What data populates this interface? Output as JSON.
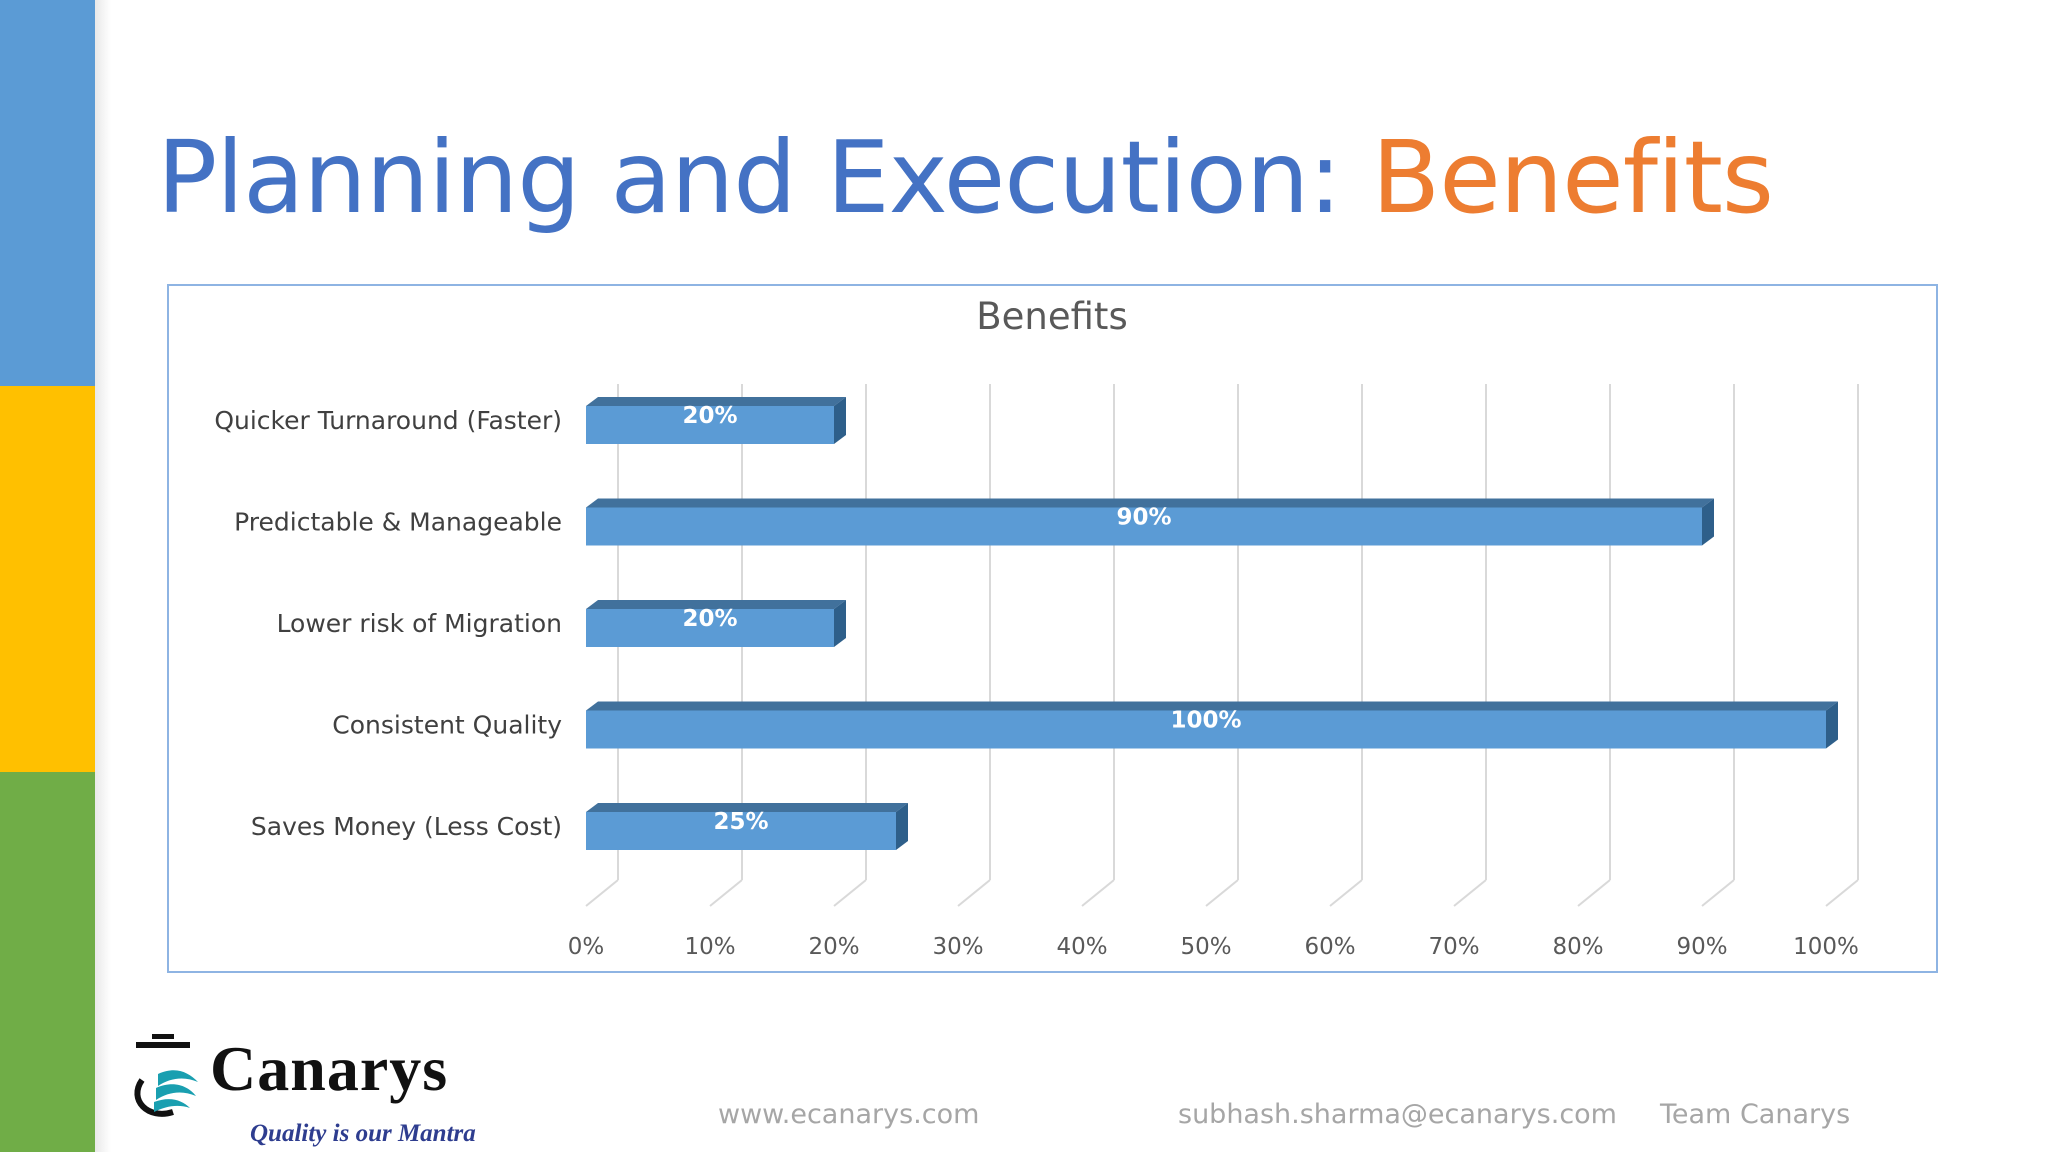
{
  "slide": {
    "title_main": "Planning and Execution: ",
    "title_accent": "Benefits",
    "colors": {
      "title": "#4472c4",
      "accent": "#ed7d31",
      "strip_blue": "#5b9bd5",
      "strip_yellow": "#ffc000",
      "strip_green": "#70ad47",
      "bar": "#5b9bd5"
    }
  },
  "chart_data": {
    "type": "bar",
    "orientation": "horizontal",
    "title": "Benefits",
    "categories": [
      "Quicker Turnaround (Faster)",
      "Predictable & Manageable",
      "Lower risk of Migration",
      "Consistent Quality",
      "Saves Money (Less Cost)"
    ],
    "values": [
      20,
      90,
      20,
      100,
      25
    ],
    "data_labels": [
      "20%",
      "90%",
      "20%",
      "100%",
      "25%"
    ],
    "xlim": [
      0,
      100
    ],
    "x_ticks": [
      "0%",
      "10%",
      "20%",
      "30%",
      "40%",
      "50%",
      "60%",
      "70%",
      "80%",
      "90%",
      "100%"
    ],
    "grid": true,
    "legend": "none"
  },
  "footer": {
    "website": "www.ecanarys.com",
    "email": "subhash.sharma@ecanarys.com",
    "team": "Team Canarys"
  },
  "logo": {
    "name": "Canarys",
    "tagline": "Quality is our Mantra"
  }
}
